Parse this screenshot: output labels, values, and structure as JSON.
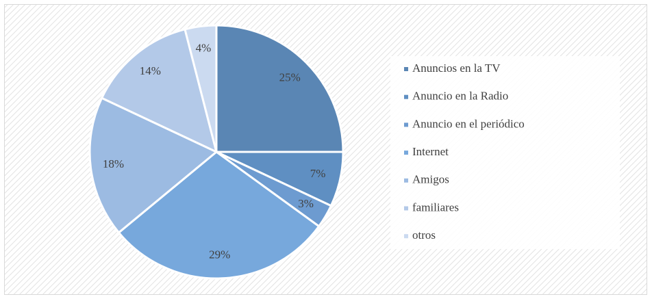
{
  "chart_data": {
    "type": "pie",
    "categories": [
      "Anuncios en la TV",
      "Anuncio en la Radio",
      "Anuncio en el periódico",
      "Internet",
      "Amigos",
      "familiares",
      "otros"
    ],
    "values": [
      25,
      7,
      3,
      29,
      18,
      14,
      4
    ],
    "value_labels": [
      "25%",
      "7%",
      "3%",
      "29%",
      "18%",
      "14%",
      "4%"
    ],
    "colors": [
      "#5a86b4",
      "#5f8fc2",
      "#6d9bd0",
      "#77a8dc",
      "#9cbbe2",
      "#b3c9e8",
      "#cbdaf0"
    ],
    "legend": "right"
  }
}
